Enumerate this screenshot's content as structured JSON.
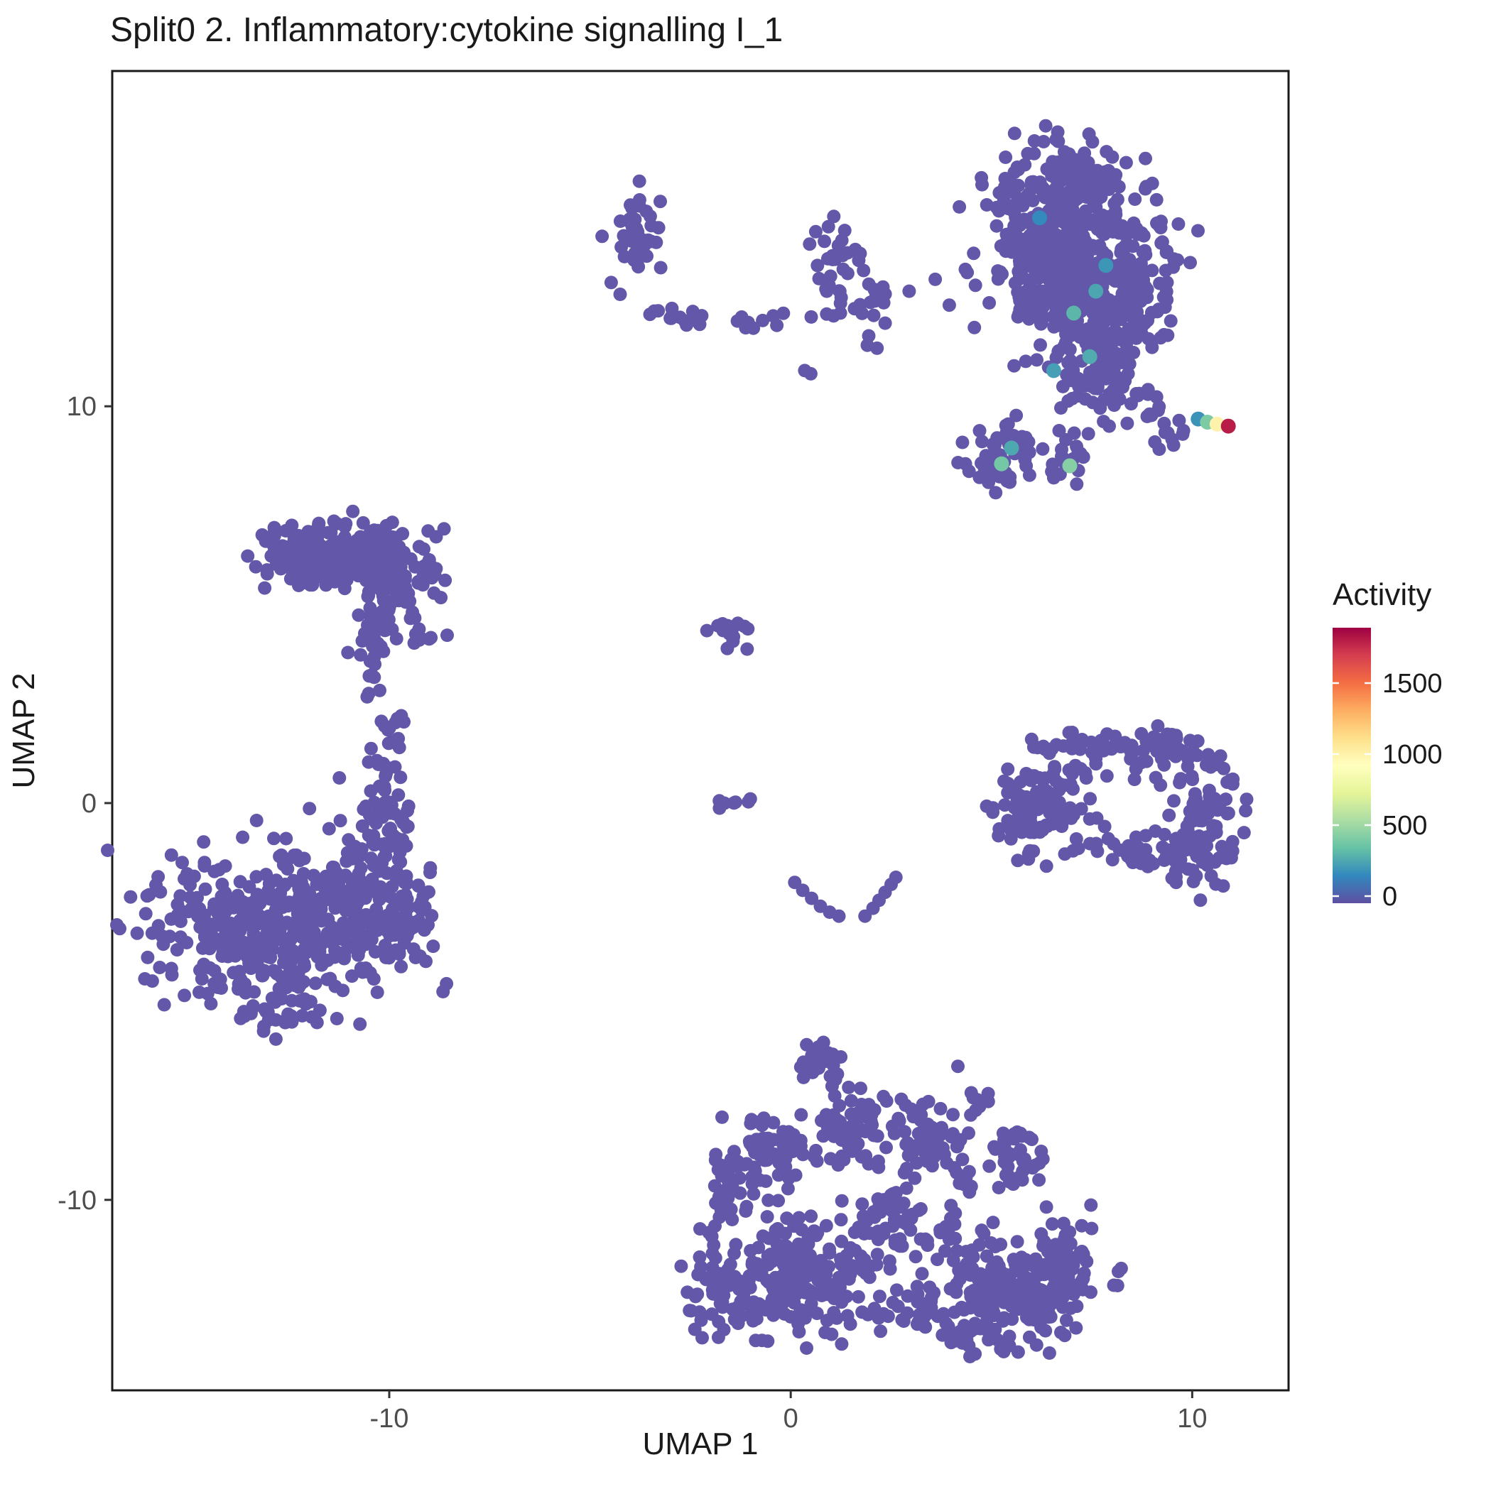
{
  "chart_data": {
    "type": "scatter",
    "title": "Split0 2. Inflammatory:cytokine signalling I_1",
    "xlabel": "UMAP 1",
    "ylabel": "UMAP 2",
    "xlim": [
      -16.9,
      12.4
    ],
    "ylim": [
      -14.8,
      18.45
    ],
    "xticks": [
      -10,
      0,
      10
    ],
    "yticks": [
      10,
      0,
      -10
    ],
    "base_color": "#6257A8",
    "point_radius": 9.5,
    "legend": {
      "title": "Activity",
      "domain": [
        -50,
        1890
      ],
      "ticks": [
        0,
        500,
        1000,
        1500
      ],
      "gradient": [
        "#5E4FA2",
        "#3288BD",
        "#66C2A5",
        "#ABDDA4",
        "#E6F598",
        "#FFFFBF",
        "#FEE08B",
        "#FDAE61",
        "#F46D43",
        "#D53E4F",
        "#9E0142"
      ]
    },
    "clusters": [
      {
        "name": "tr-main-a",
        "cx": 6.8,
        "cy": 15.4,
        "sx": 0.85,
        "sy": 0.7,
        "n": 160
      },
      {
        "name": "tr-main-b",
        "cx": 7.5,
        "cy": 14.1,
        "sx": 1.0,
        "sy": 0.75,
        "n": 190
      },
      {
        "name": "tr-main-c",
        "cx": 7.0,
        "cy": 12.9,
        "sx": 0.95,
        "sy": 0.7,
        "n": 150
      },
      {
        "name": "tr-main-d",
        "cx": 8.1,
        "cy": 12.1,
        "sx": 0.65,
        "sy": 0.6,
        "n": 80
      },
      {
        "name": "tr-main-e",
        "cx": 7.3,
        "cy": 11.2,
        "sx": 0.5,
        "sy": 0.6,
        "n": 60
      },
      {
        "name": "tr-main-f",
        "cx": 6.0,
        "cy": 13.9,
        "sx": 0.5,
        "sy": 0.7,
        "n": 60
      },
      {
        "name": "tr-right-edge",
        "cx": 8.8,
        "cy": 13.1,
        "sx": 0.4,
        "sy": 0.55,
        "n": 35
      },
      {
        "name": "tr-tail",
        "cx": 7.8,
        "cy": 10.4,
        "sx": 0.35,
        "sy": 0.45,
        "n": 25
      },
      {
        "name": "tr-knob",
        "cx": 8.9,
        "cy": 10.2,
        "sx": 0.3,
        "sy": 0.3,
        "n": 12
      },
      {
        "name": "tr-knob2",
        "cx": 9.5,
        "cy": 9.4,
        "sx": 0.3,
        "sy": 0.25,
        "n": 10
      },
      {
        "name": "top-small",
        "cx": -3.8,
        "cy": 14.2,
        "sx": 0.35,
        "sy": 0.55,
        "n": 48
      },
      {
        "name": "chain-a",
        "cx": -2.5,
        "cy": 12.25,
        "sx": 0.5,
        "sy": 0.12,
        "n": 14
      },
      {
        "name": "chain-b",
        "cx": -0.6,
        "cy": 12.15,
        "sx": 0.35,
        "sy": 0.12,
        "n": 9
      },
      {
        "name": "top-loose",
        "cx": 1.3,
        "cy": 13.4,
        "sx": 0.5,
        "sy": 0.55,
        "n": 42
      },
      {
        "name": "top-loose-arm",
        "cx": 2.2,
        "cy": 12.4,
        "sx": 0.3,
        "sy": 0.35,
        "n": 12
      },
      {
        "name": "sub-a",
        "cx": 5.3,
        "cy": 8.8,
        "sx": 0.45,
        "sy": 0.4,
        "n": 55
      },
      {
        "name": "sub-b",
        "cx": 6.9,
        "cy": 8.7,
        "sx": 0.3,
        "sy": 0.35,
        "n": 20
      },
      {
        "name": "left-top-main",
        "cx": -11.2,
        "cy": 6.1,
        "sx": 1.0,
        "sy": 0.4,
        "n": 140
      },
      {
        "name": "left-top-right",
        "cx": -9.9,
        "cy": 5.7,
        "sx": 0.6,
        "sy": 0.4,
        "n": 80
      },
      {
        "name": "left-top-left",
        "cx": -12.4,
        "cy": 6.3,
        "sx": 0.5,
        "sy": 0.3,
        "n": 45
      },
      {
        "name": "left-top-upper",
        "cx": -11.0,
        "cy": 6.8,
        "sx": 0.8,
        "sy": 0.2,
        "n": 30
      },
      {
        "name": "left-tail-a",
        "cx": -10.3,
        "cy": 4.6,
        "sx": 0.3,
        "sy": 0.4,
        "n": 22
      },
      {
        "name": "left-tail-b",
        "cx": -10.5,
        "cy": 3.5,
        "sx": 0.25,
        "sy": 0.4,
        "n": 15
      },
      {
        "name": "left-tail-c",
        "cx": -9.1,
        "cy": 4.3,
        "sx": 0.22,
        "sy": 0.18,
        "n": 10
      },
      {
        "name": "lb-main",
        "cx": -13.3,
        "cy": -3.3,
        "sx": 1.25,
        "sy": 1.0,
        "n": 300
      },
      {
        "name": "lb-right",
        "cx": -11.3,
        "cy": -3.0,
        "sx": 1.0,
        "sy": 0.9,
        "n": 190
      },
      {
        "name": "lb-edge",
        "cx": -9.6,
        "cy": -2.9,
        "sx": 0.4,
        "sy": 0.5,
        "n": 40
      },
      {
        "name": "lb-neck",
        "cx": -10.1,
        "cy": -1.2,
        "sx": 0.45,
        "sy": 0.8,
        "n": 55
      },
      {
        "name": "lb-neck2",
        "cx": -10.2,
        "cy": 0.6,
        "sx": 0.3,
        "sy": 0.7,
        "n": 30
      },
      {
        "name": "lb-neck3",
        "cx": -9.9,
        "cy": 1.9,
        "sx": 0.2,
        "sy": 0.3,
        "n": 8
      },
      {
        "name": "lb-tip",
        "cx": -12.7,
        "cy": -5.3,
        "sx": 0.5,
        "sy": 0.3,
        "n": 30
      },
      {
        "name": "center-small",
        "cx": -1.55,
        "cy": 4.35,
        "sx": 0.25,
        "sy": 0.25,
        "n": 18
      },
      {
        "name": "center-dots",
        "cx": -1.55,
        "cy": 0.05,
        "sx": 0.35,
        "sy": 0.1,
        "n": 7
      },
      {
        "name": "ring-left",
        "cx": 6.2,
        "cy": -0.1,
        "sx": 0.55,
        "sy": 0.6,
        "n": 95
      },
      {
        "name": "ring-top",
        "cx": 7.6,
        "cy": 1.5,
        "sx": 0.8,
        "sy": 0.22,
        "n": 45
      },
      {
        "name": "ring-topright",
        "cx": 9.3,
        "cy": 1.3,
        "sx": 0.5,
        "sy": 0.32,
        "n": 40
      },
      {
        "name": "ring-right",
        "cx": 10.3,
        "cy": 0.0,
        "sx": 0.45,
        "sy": 0.8,
        "n": 75
      },
      {
        "name": "ring-bottomright",
        "cx": 9.8,
        "cy": -1.3,
        "sx": 0.5,
        "sy": 0.3,
        "n": 35
      },
      {
        "name": "ring-bottom",
        "cx": 8.5,
        "cy": -1.1,
        "sx": 0.65,
        "sy": 0.25,
        "n": 28
      },
      {
        "name": "ring-inner",
        "cx": 7.1,
        "cy": 0.7,
        "sx": 0.35,
        "sy": 0.35,
        "n": 14
      },
      {
        "name": "bot-top",
        "cx": 0.7,
        "cy": -6.6,
        "sx": 0.3,
        "sy": 0.3,
        "n": 25
      },
      {
        "name": "bot-a",
        "cx": 1.5,
        "cy": -8.2,
        "sx": 0.5,
        "sy": 0.5,
        "n": 60
      },
      {
        "name": "bot-b",
        "cx": -0.5,
        "cy": -8.8,
        "sx": 0.55,
        "sy": 0.55,
        "n": 70
      },
      {
        "name": "bot-c",
        "cx": 3.4,
        "cy": -8.4,
        "sx": 0.55,
        "sy": 0.5,
        "n": 60
      },
      {
        "name": "bot-d",
        "cx": -1.6,
        "cy": -9.9,
        "sx": 0.3,
        "sy": 0.5,
        "n": 30
      },
      {
        "name": "bot-e",
        "cx": 2.5,
        "cy": -10.5,
        "sx": 0.5,
        "sy": 0.45,
        "n": 55
      },
      {
        "name": "bot-main-left",
        "cx": 0.2,
        "cy": -11.9,
        "sx": 1.0,
        "sy": 0.75,
        "n": 210
      },
      {
        "name": "bot-left-edge",
        "cx": -1.6,
        "cy": -12.4,
        "sx": 0.5,
        "sy": 0.5,
        "n": 60
      },
      {
        "name": "bot-main-right",
        "cx": 5.6,
        "cy": -12.3,
        "sx": 1.0,
        "sy": 0.75,
        "n": 210
      },
      {
        "name": "bot-right-upper",
        "cx": 6.8,
        "cy": -11.3,
        "sx": 0.4,
        "sy": 0.5,
        "n": 40
      },
      {
        "name": "bot-f",
        "cx": 5.7,
        "cy": -8.9,
        "sx": 0.4,
        "sy": 0.4,
        "n": 40
      },
      {
        "name": "bot-g",
        "cx": 4.3,
        "cy": -9.5,
        "sx": 0.2,
        "sy": 0.2,
        "n": 8
      },
      {
        "name": "bot-h",
        "cx": 4.6,
        "cy": -7.6,
        "sx": 0.2,
        "sy": 0.2,
        "n": 8
      },
      {
        "name": "bot-i",
        "cx": 3.9,
        "cy": -11.0,
        "sx": 0.3,
        "sy": 0.4,
        "n": 15
      },
      {
        "name": "bot-j",
        "cx": 2.9,
        "cy": -12.9,
        "sx": 0.45,
        "sy": 0.3,
        "n": 25
      },
      {
        "name": "bot-k",
        "cx": 4.4,
        "cy": -13.3,
        "sx": 0.4,
        "sy": 0.3,
        "n": 25
      }
    ],
    "extra_points": [
      [
        0.35,
        10.9
      ],
      [
        0.5,
        10.82
      ],
      [
        3.6,
        13.2
      ],
      [
        4.35,
        13.45
      ],
      [
        3.95,
        12.55
      ],
      [
        4.6,
        13.05
      ],
      [
        2.95,
        12.9
      ],
      [
        -3.4,
        12.4
      ],
      [
        0.1,
        -2.0
      ],
      [
        0.3,
        -2.2
      ],
      [
        0.52,
        -2.4
      ],
      [
        0.74,
        -2.6
      ],
      [
        0.97,
        -2.75
      ],
      [
        1.2,
        -2.85
      ],
      [
        1.85,
        -2.85
      ],
      [
        2.05,
        -2.65
      ],
      [
        2.2,
        -2.45
      ],
      [
        2.35,
        -2.25
      ],
      [
        2.5,
        -2.05
      ],
      [
        2.62,
        -1.87
      ],
      [
        -9.7,
        2.2
      ]
    ],
    "highlight_points": [
      {
        "x": 6.2,
        "y": 14.75,
        "activity": 150
      },
      {
        "x": 7.85,
        "y": 13.55,
        "activity": 190
      },
      {
        "x": 7.6,
        "y": 12.9,
        "activity": 240
      },
      {
        "x": 7.05,
        "y": 12.35,
        "activity": 300
      },
      {
        "x": 7.45,
        "y": 11.25,
        "activity": 260
      },
      {
        "x": 6.55,
        "y": 10.9,
        "activity": 220
      },
      {
        "x": 5.5,
        "y": 8.95,
        "activity": 250
      },
      {
        "x": 5.25,
        "y": 8.55,
        "activity": 380
      },
      {
        "x": 6.95,
        "y": 8.5,
        "activity": 430
      },
      {
        "x": 10.15,
        "y": 9.68,
        "activity": 180
      },
      {
        "x": 10.38,
        "y": 9.6,
        "activity": 400
      },
      {
        "x": 10.62,
        "y": 9.55,
        "activity": 1000
      },
      {
        "x": 10.9,
        "y": 9.5,
        "activity": 1800
      }
    ]
  }
}
